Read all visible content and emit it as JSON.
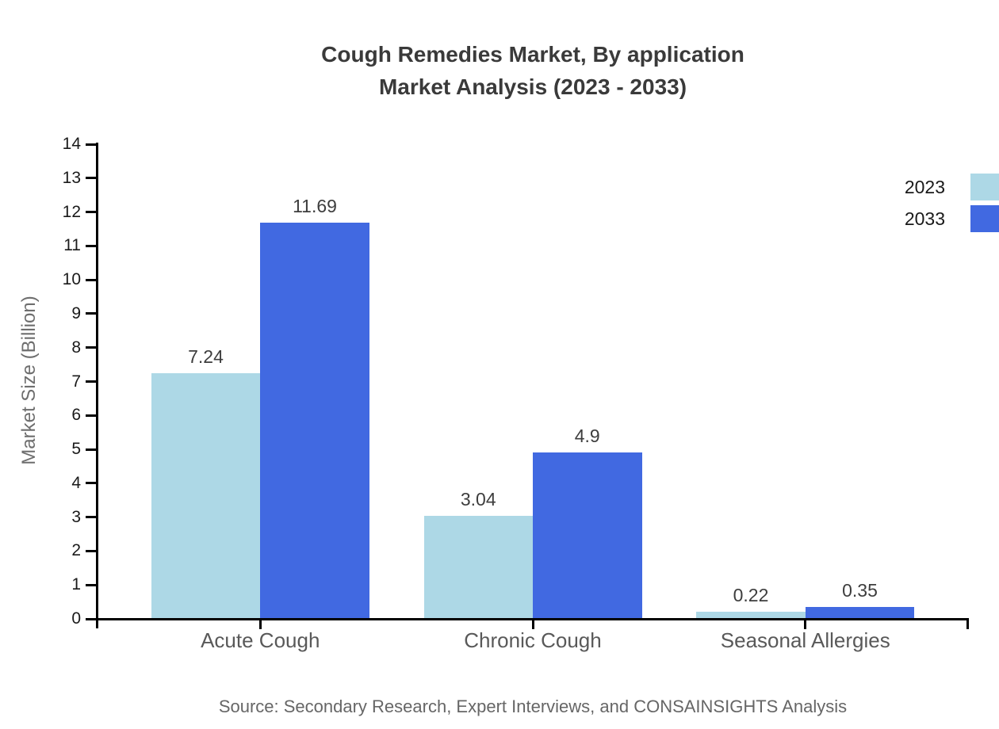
{
  "title": {
    "line1": "Cough Remedies Market, By application",
    "line2": "Market Analysis (2023 - 2033)"
  },
  "source": "Source: Secondary Research, Expert Interviews, and CONSAINSIGHTS Analysis",
  "chart_data": {
    "type": "bar",
    "title": "Cough Remedies Market, By application Market Analysis (2023 - 2033)",
    "categories": [
      "Acute Cough",
      "Chronic Cough",
      "Seasonal Allergies"
    ],
    "series": [
      {
        "name": "2023",
        "color": "#ADD8E6",
        "values": [
          7.24,
          3.04,
          0.22
        ]
      },
      {
        "name": "2033",
        "color": "#4169E1",
        "values": [
          11.69,
          4.9,
          0.35
        ]
      }
    ],
    "xlabel": "",
    "ylabel": "Market Size (Billion)",
    "ylim": [
      0,
      14
    ],
    "ytick_step": 1,
    "grid": false,
    "legend_position": "upper-right",
    "bar_value_labels_shown": true,
    "axis_color": "#000000",
    "text_colors": {
      "title": "#3a3a3a",
      "tick_labels": "#1a1a1a",
      "category_labels": "#595959",
      "value_labels": "#3d3d3d",
      "ylabel": "#6e6e6e",
      "source": "#666666"
    }
  }
}
